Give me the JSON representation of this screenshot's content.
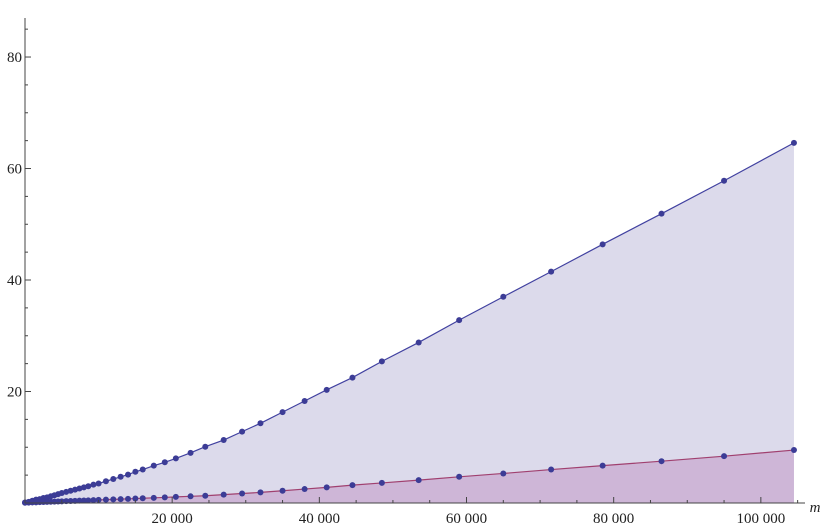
{
  "chart_data": {
    "type": "area",
    "title": "",
    "xlabel": "m",
    "ylabel": "",
    "xlim": [
      0,
      106000
    ],
    "ylim": [
      0,
      87
    ],
    "x_ticks": [
      20000,
      40000,
      60000,
      80000,
      100000
    ],
    "x_tick_labels": [
      "20 000",
      "40 000",
      "60 000",
      "80 000",
      "100 000"
    ],
    "y_ticks": [
      20,
      40,
      60,
      80
    ],
    "y_tick_labels": [
      "20",
      "40",
      "60",
      "80"
    ],
    "grid": false,
    "legend": false,
    "series": [
      {
        "color": "#4141a0",
        "fill": "#dcdaeb",
        "marker": "#3c3c96",
        "x": [
          0,
          500,
          1000,
          1500,
          2000,
          2500,
          3000,
          3500,
          4000,
          4500,
          5000,
          5600,
          6200,
          6800,
          7400,
          8000,
          8600,
          9300,
          10000,
          11000,
          12000,
          13000,
          14000,
          15000,
          16000,
          17500,
          19000,
          20500,
          22500,
          24500,
          27000,
          29500,
          32000,
          35000,
          38000,
          41000,
          44500,
          48500,
          53500,
          59000,
          65000,
          71500,
          78500,
          86500,
          95000,
          104500
        ],
        "y": [
          0.1,
          0.2,
          0.4,
          0.6,
          0.7,
          0.9,
          1.0,
          1.2,
          1.4,
          1.6,
          1.8,
          2.0,
          2.2,
          2.4,
          2.6,
          2.8,
          3.0,
          3.3,
          3.5,
          3.9,
          4.3,
          4.7,
          5.1,
          5.6,
          6.0,
          6.7,
          7.3,
          8.0,
          9.0,
          10.1,
          11.3,
          12.8,
          14.3,
          16.3,
          18.3,
          20.3,
          22.5,
          25.4,
          28.8,
          32.8,
          37.0,
          41.5,
          46.4,
          51.9,
          57.8,
          64.6
        ]
      },
      {
        "color": "#a0406f",
        "fill": "#ccb4d6",
        "marker": "#3c3c96",
        "x": [
          0,
          500,
          1000,
          1500,
          2000,
          2500,
          3000,
          3500,
          4000,
          4500,
          5000,
          5600,
          6200,
          6800,
          7400,
          8000,
          8600,
          9300,
          10000,
          11000,
          12000,
          13000,
          14000,
          15000,
          16000,
          17500,
          19000,
          20500,
          22500,
          24500,
          27000,
          29500,
          32000,
          35000,
          38000,
          41000,
          44500,
          48500,
          53500,
          59000,
          65000,
          71500,
          78500,
          86500,
          95000,
          104500
        ],
        "y": [
          0.05,
          0.07,
          0.1,
          0.12,
          0.15,
          0.17,
          0.2,
          0.22,
          0.25,
          0.27,
          0.3,
          0.33,
          0.36,
          0.39,
          0.42,
          0.45,
          0.48,
          0.51,
          0.55,
          0.6,
          0.65,
          0.7,
          0.75,
          0.8,
          0.85,
          0.93,
          1.0,
          1.1,
          1.2,
          1.3,
          1.5,
          1.7,
          1.9,
          2.2,
          2.5,
          2.8,
          3.2,
          3.6,
          4.1,
          4.7,
          5.3,
          6.0,
          6.7,
          7.5,
          8.4,
          9.5
        ]
      }
    ]
  }
}
